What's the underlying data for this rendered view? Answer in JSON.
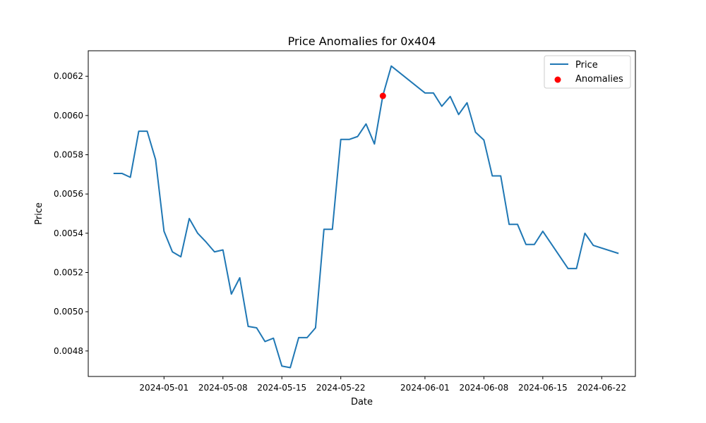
{
  "chart_data": {
    "type": "line",
    "title": "Price Anomalies for 0x404",
    "xlabel": "Date",
    "ylabel": "Price",
    "xlim": [
      "2024-04-22",
      "2024-06-26"
    ],
    "ylim": [
      0.00467,
      0.00633
    ],
    "xticks": [
      "2024-05-01",
      "2024-05-08",
      "2024-05-15",
      "2024-05-22",
      "2024-06-01",
      "2024-06-08",
      "2024-06-15",
      "2024-06-22"
    ],
    "yticks": [
      "0.0048",
      "0.0050",
      "0.0052",
      "0.0054",
      "0.0056",
      "0.0058",
      "0.0060",
      "0.0062"
    ],
    "grid": false,
    "legend_position": "top-right",
    "colors": {
      "line": "#1f77b4",
      "anomaly": "#ff0000"
    },
    "series": [
      {
        "name": "Price",
        "type": "line",
        "x": [
          "2024-04-25",
          "2024-04-26",
          "2024-04-27",
          "2024-04-28",
          "2024-04-29",
          "2024-04-30",
          "2024-05-01",
          "2024-05-02",
          "2024-05-03",
          "2024-05-04",
          "2024-05-05",
          "2024-05-06",
          "2024-05-07",
          "2024-05-08",
          "2024-05-09",
          "2024-05-10",
          "2024-05-11",
          "2024-05-12",
          "2024-05-13",
          "2024-05-14",
          "2024-05-15",
          "2024-05-16",
          "2024-05-17",
          "2024-05-18",
          "2024-05-19",
          "2024-05-20",
          "2024-05-21",
          "2024-05-22",
          "2024-05-23",
          "2024-05-24",
          "2024-05-25",
          "2024-05-26",
          "2024-05-27",
          "2024-05-28",
          "2024-06-01",
          "2024-06-02",
          "2024-06-03",
          "2024-06-04",
          "2024-06-05",
          "2024-06-06",
          "2024-06-07",
          "2024-06-08",
          "2024-06-09",
          "2024-06-10",
          "2024-06-11",
          "2024-06-12",
          "2024-06-13",
          "2024-06-14",
          "2024-06-15",
          "2024-06-18",
          "2024-06-19",
          "2024-06-20",
          "2024-06-21",
          "2024-06-24"
        ],
        "y": [
          0.005705,
          0.005705,
          0.005685,
          0.00592,
          0.00592,
          0.005775,
          0.00541,
          0.005305,
          0.00528,
          0.005475,
          0.0054,
          0.005355,
          0.005305,
          0.005315,
          0.00509,
          0.005173,
          0.004925,
          0.004918,
          0.004848,
          0.004865,
          0.004723,
          0.004715,
          0.004868,
          0.004868,
          0.004918,
          0.00542,
          0.00542,
          0.005878,
          0.005878,
          0.005893,
          0.005957,
          0.005855,
          0.006102,
          0.006252,
          0.006115,
          0.006115,
          0.006047,
          0.006097,
          0.006005,
          0.006065,
          0.005915,
          0.005875,
          0.005692,
          0.005692,
          0.005445,
          0.005445,
          0.005343,
          0.005343,
          0.00541,
          0.00522,
          0.00522,
          0.0054,
          0.005338,
          0.005297
        ]
      },
      {
        "name": "Anomalies",
        "type": "scatter",
        "x": [
          "2024-05-27"
        ],
        "y": [
          0.0061
        ]
      }
    ]
  }
}
